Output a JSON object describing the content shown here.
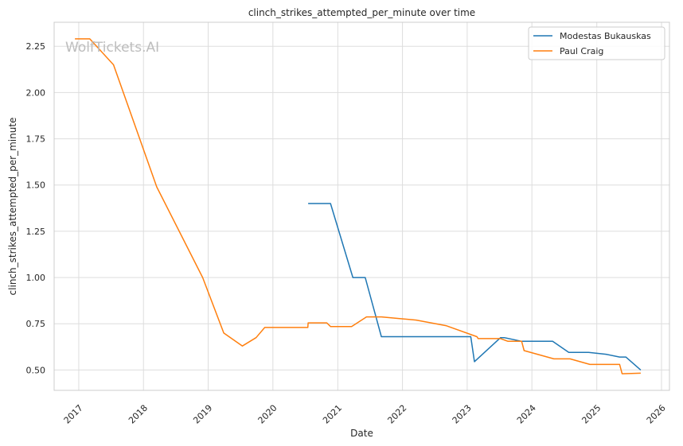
{
  "chart_data": {
    "type": "line",
    "title": "clinch_strikes_attempted_per_minute over time",
    "xlabel": "Date",
    "ylabel": "clinch_strikes_attempted_per_minute",
    "watermark": "WolfTickets.AI",
    "x_ticks": [
      "2017",
      "2018",
      "2019",
      "2020",
      "2021",
      "2022",
      "2023",
      "2024",
      "2025",
      "2026"
    ],
    "y_ticks": [
      "0.50",
      "0.75",
      "1.00",
      "1.25",
      "1.50",
      "1.75",
      "2.00",
      "2.25"
    ],
    "xlim": [
      "2016-08-15",
      "2026-02-15"
    ],
    "ylim": [
      0.39,
      2.38
    ],
    "grid": true,
    "legend_position": "top-right",
    "series": [
      {
        "name": "Modestas Bukauskas",
        "color": "#1f77b4",
        "points": [
          [
            "2020-07-18",
            1.4
          ],
          [
            "2020-11-21",
            1.4
          ],
          [
            "2021-03-27",
            1.0
          ],
          [
            "2021-06-05",
            1.0
          ],
          [
            "2021-09-04",
            0.68
          ],
          [
            "2023-01-21",
            0.68
          ],
          [
            "2023-02-11",
            0.545
          ],
          [
            "2023-07-08",
            0.675
          ],
          [
            "2023-07-29",
            0.675
          ],
          [
            "2023-11-04",
            0.655
          ],
          [
            "2024-04-27",
            0.655
          ],
          [
            "2024-07-27",
            0.595
          ],
          [
            "2024-11-16",
            0.595
          ],
          [
            "2025-02-22",
            0.585
          ],
          [
            "2025-05-10",
            0.57
          ],
          [
            "2025-06-14",
            0.57
          ],
          [
            "2025-09-06",
            0.5
          ]
        ]
      },
      {
        "name": "Paul Craig",
        "color": "#ff7f0e",
        "points": [
          [
            "2016-12-10",
            2.29
          ],
          [
            "2017-03-04",
            2.29
          ],
          [
            "2017-07-16",
            2.15
          ],
          [
            "2018-03-17",
            1.49
          ],
          [
            "2018-12-01",
            1.0
          ],
          [
            "2019-03-30",
            0.7
          ],
          [
            "2019-07-13",
            0.63
          ],
          [
            "2019-09-28",
            0.675
          ],
          [
            "2019-11-16",
            0.73
          ],
          [
            "2020-07-16",
            0.73
          ],
          [
            "2020-07-18",
            0.755
          ],
          [
            "2020-10-31",
            0.755
          ],
          [
            "2020-11-21",
            0.735
          ],
          [
            "2021-03-20",
            0.735
          ],
          [
            "2021-06-12",
            0.787
          ],
          [
            "2021-09-04",
            0.787
          ],
          [
            "2022-03-19",
            0.77
          ],
          [
            "2022-09-03",
            0.74
          ],
          [
            "2023-02-25",
            0.68
          ],
          [
            "2023-03-04",
            0.67
          ],
          [
            "2023-07-08",
            0.67
          ],
          [
            "2023-08-19",
            0.655
          ],
          [
            "2023-11-04",
            0.655
          ],
          [
            "2023-11-18",
            0.605
          ],
          [
            "2024-05-04",
            0.56
          ],
          [
            "2024-08-03",
            0.56
          ],
          [
            "2024-11-23",
            0.53
          ],
          [
            "2025-05-10",
            0.53
          ],
          [
            "2025-05-24",
            0.48
          ],
          [
            "2025-09-06",
            0.483
          ]
        ]
      }
    ]
  }
}
